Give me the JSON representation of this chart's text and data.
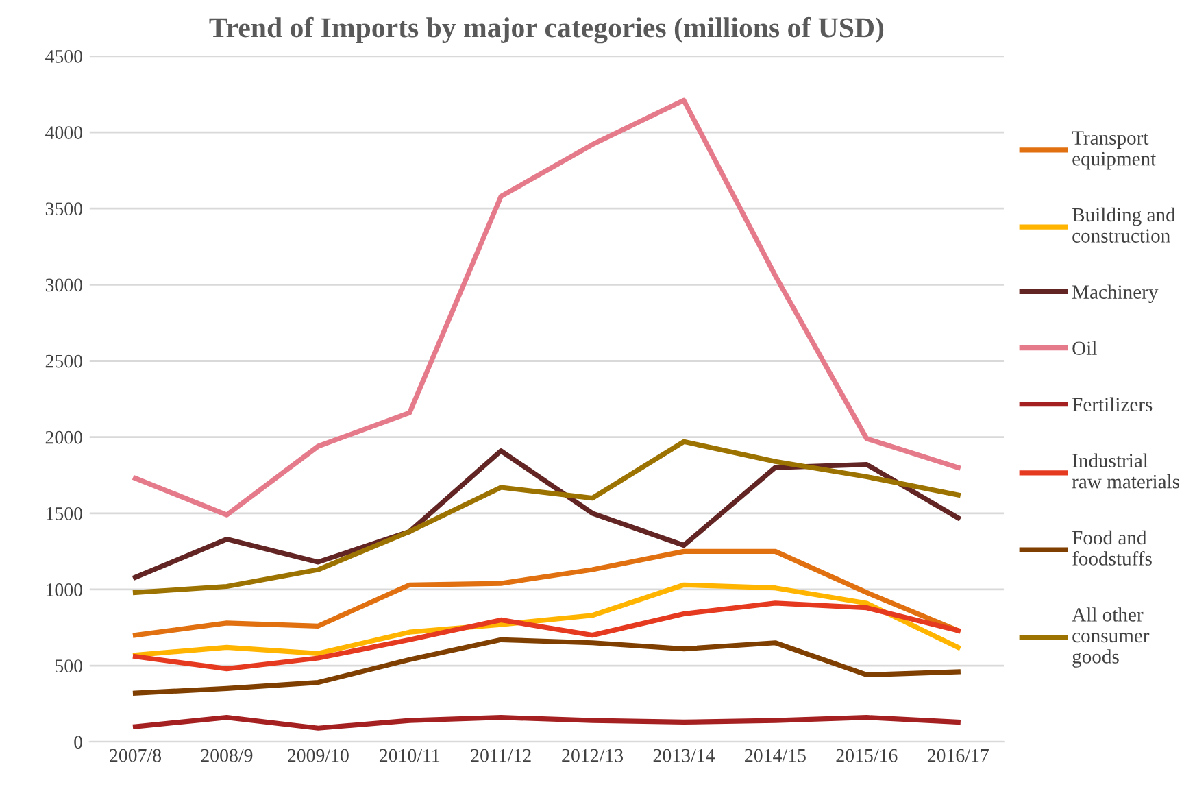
{
  "chart_data": {
    "type": "line",
    "title": "Trend of Imports by major categories (millions of USD)",
    "categories": [
      "2007/8",
      "2008/9",
      "2009/10",
      "2010/11",
      "2011/12",
      "2012/13",
      "2013/14",
      "2014/15",
      "2015/16",
      "2016/17"
    ],
    "series": [
      {
        "name": "Transport equipment",
        "color": "#e07010",
        "values": [
          700,
          780,
          760,
          1030,
          1040,
          1130,
          1250,
          1250,
          980,
          730
        ]
      },
      {
        "name": "Building and construction",
        "color": "#ffb400",
        "values": [
          570,
          620,
          580,
          720,
          770,
          830,
          1030,
          1010,
          910,
          620
        ]
      },
      {
        "name": "Machinery",
        "color": "#632523",
        "values": [
          1080,
          1330,
          1180,
          1380,
          1910,
          1500,
          1290,
          1800,
          1820,
          1470
        ]
      },
      {
        "name": "Oil",
        "color": "#e57a8a",
        "values": [
          1730,
          1490,
          1940,
          2160,
          3580,
          3920,
          4210,
          3060,
          1990,
          1800
        ]
      },
      {
        "name": "Fertilizers",
        "color": "#a52020",
        "values": [
          100,
          160,
          90,
          140,
          160,
          140,
          130,
          140,
          160,
          130
        ]
      },
      {
        "name": "Industrial raw materials",
        "color": "#e53a20",
        "values": [
          560,
          480,
          550,
          670,
          800,
          700,
          840,
          910,
          880,
          730
        ]
      },
      {
        "name": "Food and foodstuffs",
        "color": "#7f3f00",
        "values": [
          320,
          350,
          390,
          540,
          670,
          650,
          610,
          650,
          440,
          460
        ]
      },
      {
        "name": "All other consumer goods",
        "color": "#9c7200",
        "values": [
          980,
          1020,
          1130,
          1380,
          1670,
          1600,
          1970,
          1840,
          1740,
          1620
        ]
      }
    ],
    "ylim": [
      0,
      4500
    ],
    "yticks": [
      0,
      500,
      1000,
      1500,
      2000,
      2500,
      3000,
      3500,
      4000,
      4500
    ],
    "grid": "y",
    "legend": "right",
    "marker": "none",
    "line_style": "solid"
  }
}
